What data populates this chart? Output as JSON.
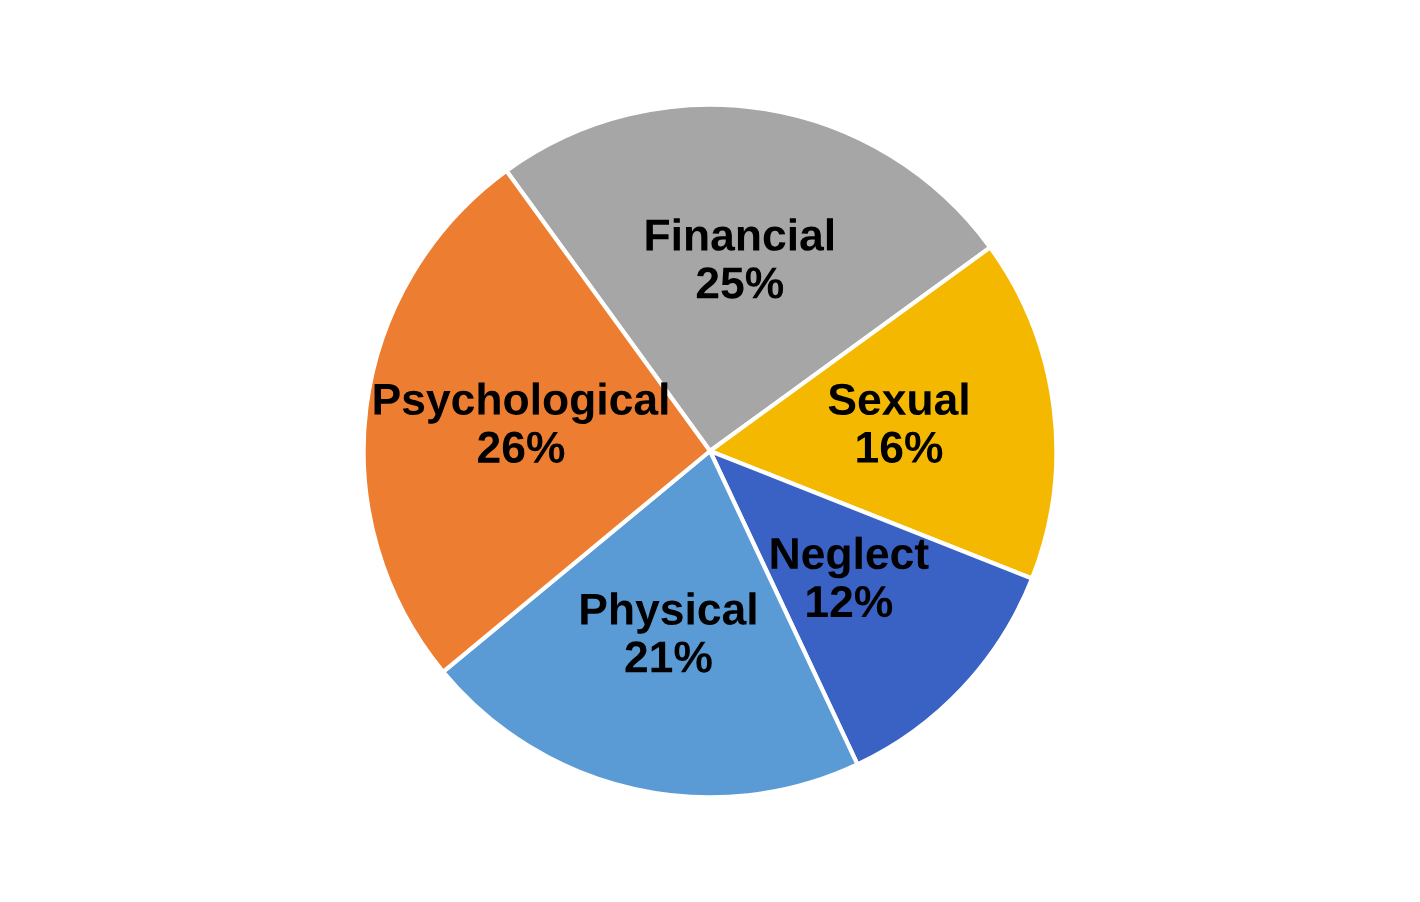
{
  "chart_data": {
    "type": "pie",
    "categories": [
      "Financial",
      "Sexual",
      "Neglect",
      "Physical",
      "Psychological"
    ],
    "values": [
      25,
      16,
      12,
      21,
      26
    ],
    "colors": [
      "#a6a6a6",
      "#f5b800",
      "#3a62c4",
      "#5b9bd5",
      "#ed7d31"
    ],
    "value_labels": [
      "25%",
      "16%",
      "12%",
      "21%",
      "26%"
    ],
    "legend": false
  }
}
